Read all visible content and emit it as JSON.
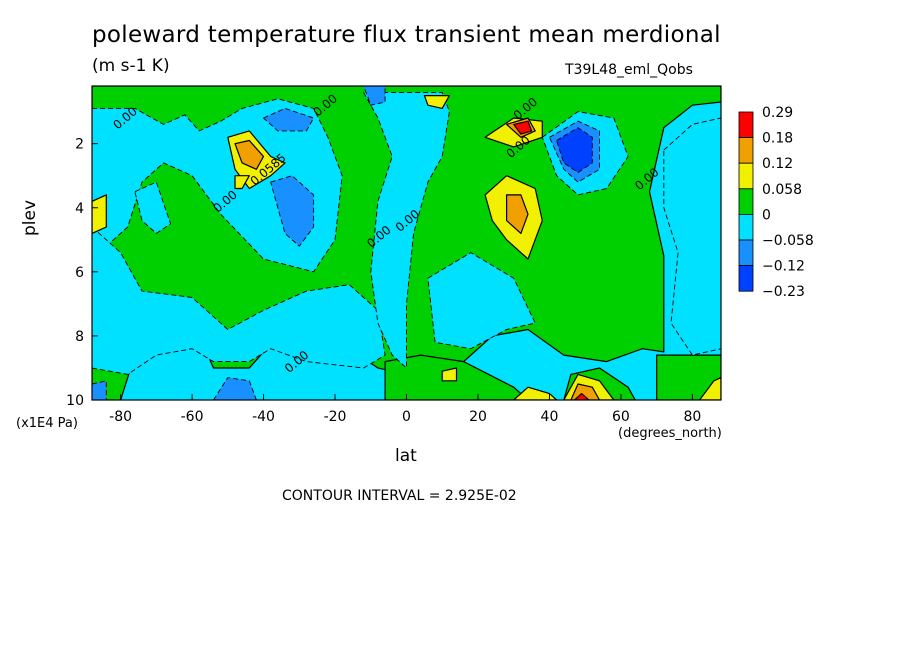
{
  "chart_data": {
    "type": "heatmap",
    "title": "poleward temperature flux transient mean merdional",
    "units": "(m s-1 K)",
    "dataset": "T39L48_eml_Qobs",
    "xlabel": "lat",
    "xunits": "(degrees_north)",
    "ylabel": "plev",
    "yunits": "(x1E4 Pa)",
    "contour_interval": "CONTOUR INTERVAL = 2.925E-02",
    "xlim": [
      -88,
      88
    ],
    "ylim": [
      10,
      0.2
    ],
    "x_ticks": [
      "-80",
      "-60",
      "-40",
      "-20",
      "0",
      "20",
      "40",
      "60",
      "80"
    ],
    "x_tick_values": [
      -80,
      -60,
      -40,
      -20,
      0,
      20,
      40,
      60,
      80
    ],
    "y_ticks": [
      "2",
      "4",
      "6",
      "8",
      "10"
    ],
    "y_tick_values": [
      2,
      4,
      6,
      8,
      10
    ],
    "colorbar": {
      "labels": [
        "0.29",
        "0.18",
        "0.12",
        "0.058",
        "0",
        "−0.058",
        "−0.12",
        "−0.23"
      ],
      "colors": [
        "#ff0000",
        "#f0a000",
        "#f0f000",
        "#00d000",
        "#00e0ff",
        "#1890ff",
        "#0040ff"
      ]
    },
    "contour_labels": [
      {
        "text": "0.00",
        "x": -78,
        "y": 1.3
      },
      {
        "text": "0.0585",
        "x": -38,
        "y": 2.9
      },
      {
        "text": "0.00",
        "x": -50,
        "y": 3.9
      },
      {
        "text": "0.00",
        "x": -22,
        "y": 0.9
      },
      {
        "text": "0.00",
        "x": -7,
        "y": 5.0
      },
      {
        "text": "0.00",
        "x": 1,
        "y": 4.5
      },
      {
        "text": "0.00",
        "x": 34,
        "y": 1.0
      },
      {
        "text": "0.00",
        "x": 32,
        "y": 2.2
      },
      {
        "text": "0.00",
        "x": 68,
        "y": 3.2
      },
      {
        "text": "0.00",
        "x": -30,
        "y": 8.9
      }
    ],
    "regions": [
      {
        "level": "pos1",
        "points": [
          [
            -88,
            0.2
          ],
          [
            -88,
            10
          ],
          [
            -80,
            10
          ],
          [
            -76,
            8.6
          ],
          [
            -68,
            8.0
          ],
          [
            -58,
            8.0
          ],
          [
            -54,
            9.0
          ],
          [
            -44,
            9.0
          ],
          [
            -36,
            8.0
          ],
          [
            -26,
            7.8
          ],
          [
            -16,
            8.4
          ],
          [
            -8,
            9.0
          ],
          [
            0,
            9.2
          ],
          [
            14,
            9.0
          ],
          [
            24,
            8.0
          ],
          [
            34,
            7.8
          ],
          [
            44,
            8.6
          ],
          [
            56,
            8.8
          ],
          [
            66,
            8.4
          ],
          [
            72,
            8.5
          ],
          [
            72,
            5.5
          ],
          [
            68,
            3.5
          ],
          [
            72,
            1.5
          ],
          [
            80,
            0.8
          ],
          [
            88,
            0.7
          ],
          [
            88,
            0.2
          ]
        ]
      },
      {
        "level": "pos1",
        "points": [
          [
            70,
            8.6
          ],
          [
            88,
            8.6
          ],
          [
            88,
            10
          ],
          [
            70,
            10
          ]
        ]
      },
      {
        "level": "pos1",
        "points": [
          [
            -6,
            10
          ],
          [
            -6,
            8.8
          ],
          [
            4,
            8.6
          ],
          [
            16,
            8.8
          ],
          [
            30,
            9.6
          ],
          [
            34,
            10
          ]
        ]
      },
      {
        "level": "pos1",
        "points": [
          [
            44,
            10
          ],
          [
            46,
            9.2
          ],
          [
            54,
            9.0
          ],
          [
            62,
            9.6
          ],
          [
            64,
            10
          ]
        ]
      },
      {
        "level": "neg1",
        "points": [
          [
            -88,
            0.9
          ],
          [
            -76,
            0.9
          ],
          [
            -68,
            1.4
          ],
          [
            -62,
            1.1
          ],
          [
            -58,
            1.6
          ],
          [
            -52,
            1.3
          ],
          [
            -46,
            0.9
          ],
          [
            -36,
            0.6
          ],
          [
            -26,
            0.9
          ],
          [
            -22,
            1.8
          ],
          [
            -18,
            3.0
          ],
          [
            -20,
            5.0
          ],
          [
            -26,
            6.0
          ],
          [
            -40,
            5.6
          ],
          [
            -52,
            4.2
          ],
          [
            -60,
            3.0
          ],
          [
            -68,
            2.6
          ],
          [
            -74,
            3.2
          ],
          [
            -78,
            4.6
          ],
          [
            -84,
            5.2
          ],
          [
            -88,
            5.0
          ]
        ]
      },
      {
        "level": "neg1",
        "points": [
          [
            -88,
            4.6
          ],
          [
            -80,
            5.4
          ],
          [
            -74,
            6.6
          ],
          [
            -60,
            6.8
          ],
          [
            -50,
            7.8
          ],
          [
            -40,
            7.2
          ],
          [
            -28,
            6.6
          ],
          [
            -16,
            6.4
          ],
          [
            -8,
            7.2
          ],
          [
            -6,
            8.6
          ],
          [
            -12,
            9.0
          ],
          [
            -28,
            8.8
          ],
          [
            -38,
            8.4
          ],
          [
            -44,
            8.8
          ],
          [
            -54,
            8.8
          ],
          [
            -60,
            8.4
          ],
          [
            -70,
            8.6
          ],
          [
            -78,
            9.2
          ],
          [
            -88,
            9.0
          ]
        ]
      },
      {
        "level": "neg1",
        "points": [
          [
            -12,
            0.4
          ],
          [
            -8,
            1.2
          ],
          [
            -4,
            2.4
          ],
          [
            -8,
            3.8
          ],
          [
            -10,
            6.0
          ],
          [
            -8,
            7.6
          ],
          [
            -4,
            8.6
          ],
          [
            0,
            9.0
          ],
          [
            0,
            7.0
          ],
          [
            2,
            4.8
          ],
          [
            6,
            3.2
          ],
          [
            10,
            2.4
          ],
          [
            12,
            1.0
          ],
          [
            10,
            0.4
          ]
        ]
      },
      {
        "level": "neg1",
        "points": [
          [
            6,
            6.2
          ],
          [
            18,
            5.4
          ],
          [
            30,
            6.2
          ],
          [
            36,
            7.6
          ],
          [
            28,
            7.8
          ],
          [
            18,
            8.4
          ],
          [
            8,
            8.2
          ]
        ]
      },
      {
        "level": "neg1",
        "points": [
          [
            38,
            1.8
          ],
          [
            48,
            1.0
          ],
          [
            58,
            1.2
          ],
          [
            62,
            2.4
          ],
          [
            56,
            3.4
          ],
          [
            48,
            3.6
          ],
          [
            42,
            3.0
          ]
        ]
      },
      {
        "level": "neg1",
        "points": [
          [
            72,
            2.2
          ],
          [
            80,
            1.4
          ],
          [
            88,
            1.2
          ],
          [
            88,
            8.4
          ],
          [
            80,
            8.6
          ],
          [
            74,
            7.6
          ],
          [
            76,
            5.4
          ],
          [
            72,
            4.0
          ]
        ]
      },
      {
        "level": "neg1",
        "points": [
          [
            -76,
            3.5
          ],
          [
            -70,
            3.2
          ],
          [
            -66,
            4.5
          ],
          [
            -70,
            4.8
          ],
          [
            -74,
            4.4
          ]
        ]
      },
      {
        "level": "neg2",
        "points": [
          [
            -38,
            3.2
          ],
          [
            -32,
            3.0
          ],
          [
            -26,
            3.6
          ],
          [
            -26,
            4.6
          ],
          [
            -30,
            5.2
          ],
          [
            -34,
            4.8
          ],
          [
            -36,
            4.0
          ]
        ]
      },
      {
        "level": "neg2",
        "points": [
          [
            -40,
            1.2
          ],
          [
            -34,
            0.9
          ],
          [
            -26,
            1.2
          ],
          [
            -28,
            1.6
          ],
          [
            -36,
            1.6
          ]
        ]
      },
      {
        "level": "neg2",
        "points": [
          [
            -12,
            0.2
          ],
          [
            -6,
            0.2
          ],
          [
            -6,
            0.7
          ],
          [
            -10,
            0.8
          ]
        ]
      },
      {
        "level": "neg2",
        "points": [
          [
            40,
            1.8
          ],
          [
            48,
            1.3
          ],
          [
            54,
            1.6
          ],
          [
            54,
            2.8
          ],
          [
            48,
            3.2
          ],
          [
            44,
            2.8
          ]
        ]
      },
      {
        "level": "neg2",
        "points": [
          [
            -88,
            9.5
          ],
          [
            -84,
            9.4
          ],
          [
            -84,
            10
          ],
          [
            -88,
            10
          ]
        ]
      },
      {
        "level": "neg2",
        "points": [
          [
            -54,
            10
          ],
          [
            -50,
            9.3
          ],
          [
            -44,
            9.4
          ],
          [
            -42,
            10
          ]
        ]
      },
      {
        "level": "neg3",
        "points": [
          [
            42,
            1.9
          ],
          [
            48,
            1.5
          ],
          [
            52,
            1.8
          ],
          [
            52,
            2.6
          ],
          [
            48,
            2.9
          ],
          [
            44,
            2.6
          ]
        ]
      },
      {
        "level": "pos2",
        "points": [
          [
            -50,
            1.8
          ],
          [
            -44,
            1.6
          ],
          [
            -38,
            2.4
          ],
          [
            -34,
            2.6
          ],
          [
            -38,
            3.0
          ],
          [
            -44,
            3.4
          ],
          [
            -48,
            2.8
          ]
        ]
      },
      {
        "level": "pos2",
        "points": [
          [
            22,
            3.6
          ],
          [
            28,
            3.0
          ],
          [
            36,
            3.4
          ],
          [
            38,
            4.4
          ],
          [
            34,
            5.6
          ],
          [
            28,
            5.0
          ],
          [
            24,
            4.4
          ]
        ]
      },
      {
        "level": "pos2",
        "points": [
          [
            22,
            1.8
          ],
          [
            30,
            1.2
          ],
          [
            38,
            1.3
          ],
          [
            38,
            1.8
          ],
          [
            30,
            2.1
          ]
        ]
      },
      {
        "level": "pos2",
        "points": [
          [
            5,
            0.5
          ],
          [
            12,
            0.5
          ],
          [
            10,
            0.9
          ],
          [
            6,
            0.8
          ]
        ]
      },
      {
        "level": "pos2",
        "points": [
          [
            -88,
            3.8
          ],
          [
            -84,
            3.6
          ],
          [
            -84,
            4.6
          ],
          [
            -88,
            4.8
          ]
        ]
      },
      {
        "level": "pos2",
        "points": [
          [
            10,
            9.1
          ],
          [
            14,
            9.0
          ],
          [
            14,
            9.4
          ],
          [
            10,
            9.4
          ]
        ]
      },
      {
        "level": "pos2",
        "points": [
          [
            -48,
            3.0
          ],
          [
            -44,
            3.0
          ],
          [
            -46,
            3.4
          ],
          [
            -48,
            3.4
          ]
        ]
      },
      {
        "level": "pos2",
        "points": [
          [
            30,
            10
          ],
          [
            34,
            9.6
          ],
          [
            40,
            9.8
          ],
          [
            42,
            10
          ]
        ]
      },
      {
        "level": "pos2",
        "points": [
          [
            82,
            10
          ],
          [
            86,
            9.4
          ],
          [
            88,
            9.3
          ],
          [
            88,
            10
          ]
        ]
      },
      {
        "level": "pos2",
        "points": [
          [
            44,
            10
          ],
          [
            48,
            9.2
          ],
          [
            54,
            9.4
          ],
          [
            58,
            10
          ]
        ]
      },
      {
        "level": "pos3",
        "points": [
          [
            -48,
            2.0
          ],
          [
            -44,
            1.9
          ],
          [
            -40,
            2.4
          ],
          [
            -42,
            2.8
          ],
          [
            -46,
            2.6
          ]
        ]
      },
      {
        "level": "pos3",
        "points": [
          [
            28,
            3.6
          ],
          [
            32,
            3.6
          ],
          [
            34,
            4.2
          ],
          [
            32,
            4.8
          ],
          [
            28,
            4.4
          ]
        ]
      },
      {
        "level": "pos3",
        "points": [
          [
            28,
            1.4
          ],
          [
            34,
            1.2
          ],
          [
            36,
            1.6
          ],
          [
            32,
            1.8
          ]
        ]
      },
      {
        "level": "pos3",
        "points": [
          [
            46,
            10
          ],
          [
            48,
            9.5
          ],
          [
            52,
            9.6
          ],
          [
            54,
            10
          ]
        ]
      },
      {
        "level": "pos4",
        "points": [
          [
            30,
            1.4
          ],
          [
            34,
            1.3
          ],
          [
            35,
            1.6
          ],
          [
            32,
            1.7
          ]
        ]
      },
      {
        "level": "pos4",
        "points": [
          [
            47,
            10
          ],
          [
            49,
            9.8
          ],
          [
            51,
            10
          ]
        ]
      }
    ]
  }
}
